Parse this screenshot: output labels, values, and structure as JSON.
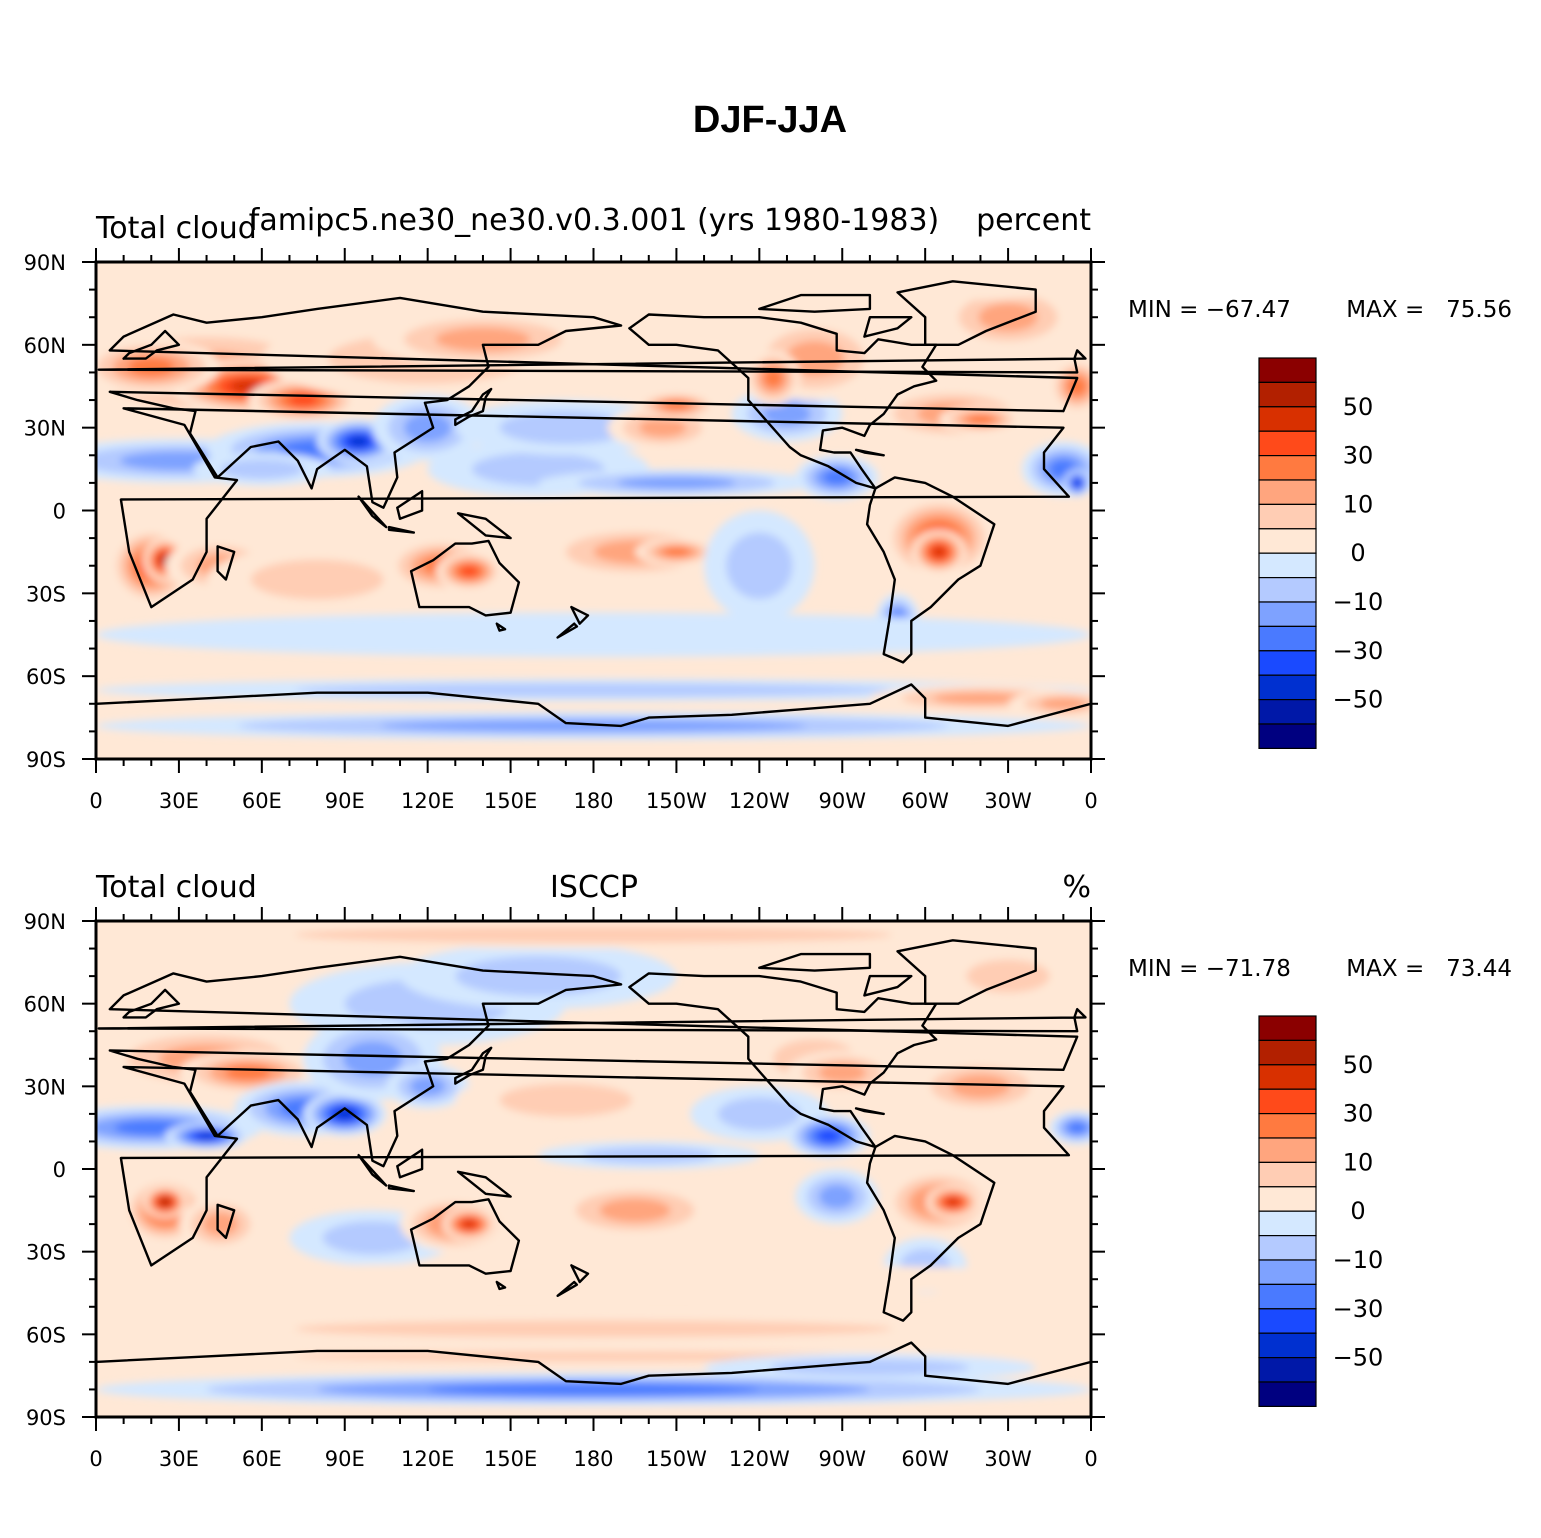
{
  "figure": {
    "title": "DJF-JJA"
  },
  "chart_data": [
    {
      "type": "heatmap",
      "left_label": "Total cloud",
      "center_label": "famipc5.ne30_ne30.v0.3.001 (yrs 1980-1983)",
      "right_label": "percent",
      "min_label": "MIN = −67.47",
      "max_label": "MAX =   75.56",
      "min": -67.47,
      "max": 75.56,
      "x_range": [
        0,
        360
      ],
      "y_range": [
        -90,
        90
      ],
      "x_ticks": [
        "0",
        "30E",
        "60E",
        "90E",
        "120E",
        "150E",
        "180",
        "150W",
        "120W",
        "90W",
        "60W",
        "30W",
        "0"
      ],
      "y_ticks": [
        "90N",
        "60N",
        "30N",
        "0",
        "30S",
        "60S",
        "90S"
      ],
      "colorbar_labels": [
        "50",
        "30",
        "10",
        "0",
        "−10",
        "−30",
        "−50"
      ],
      "colorbar_levels": [
        -60,
        -50,
        -40,
        -30,
        -20,
        -10,
        -5,
        0,
        5,
        10,
        20,
        30,
        40,
        50,
        60
      ]
    },
    {
      "type": "heatmap",
      "left_label": "Total cloud",
      "center_label": "ISCCP",
      "right_label": "%",
      "min_label": "MIN = −71.78",
      "max_label": "MAX =   73.44",
      "min": -71.78,
      "max": 73.44,
      "x_range": [
        0,
        360
      ],
      "y_range": [
        -90,
        90
      ],
      "x_ticks": [
        "0",
        "30E",
        "60E",
        "90E",
        "120E",
        "150E",
        "180",
        "150W",
        "120W",
        "90W",
        "60W",
        "30W",
        "0"
      ],
      "y_ticks": [
        "90N",
        "60N",
        "30N",
        "0",
        "30S",
        "60S",
        "90S"
      ],
      "colorbar_labels": [
        "50",
        "30",
        "10",
        "0",
        "−10",
        "−30",
        "−50"
      ],
      "colorbar_levels": [
        -60,
        -50,
        -40,
        -30,
        -20,
        -10,
        -5,
        0,
        5,
        10,
        20,
        30,
        40,
        50,
        60
      ]
    }
  ],
  "colors": {
    "colorbar_fills": [
      "#8b0000",
      "#b22000",
      "#d83000",
      "#ff4a1a",
      "#ff7a40",
      "#ffa57e",
      "#ffcdb4",
      "#ffe8d6",
      "#d4e8ff",
      "#b4caff",
      "#7ea2ff",
      "#4a7aff",
      "#1a4aff",
      "#0030d0",
      "#0018a8",
      "#000080"
    ]
  }
}
